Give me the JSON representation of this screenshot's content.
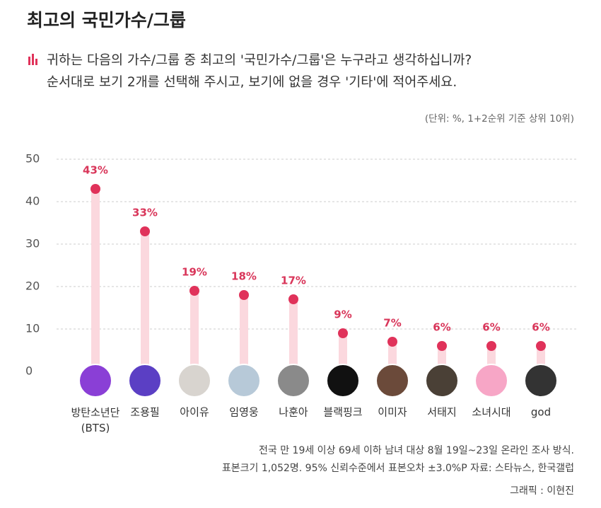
{
  "chart_data": {
    "type": "lollipop",
    "title": "최고의 국민가수/그룹",
    "subtitle": [
      "귀하는 다음의 가수/그룹 중 최고의 '국민가수/그룹'은 누구라고 생각하십니까?",
      "순서대로 보기 2개를 선택해 주시고, 보기에 없을 경우 '기타'에 적어주세요."
    ],
    "unit_note": "(단위: %, 1+2순위 기준 상위 10위)",
    "categories": [
      "방탄소년단 (BTS)",
      "조용필",
      "아이유",
      "임영웅",
      "나훈아",
      "블랙핑크",
      "이미자",
      "서태지",
      "소녀시대",
      "god"
    ],
    "values": [
      43,
      33,
      19,
      18,
      17,
      9,
      7,
      6,
      6,
      6
    ],
    "value_labels": [
      "43%",
      "33%",
      "19%",
      "18%",
      "17%",
      "9%",
      "7%",
      "6%",
      "6%",
      "6%"
    ],
    "color": "#e0325a",
    "stem_color": "#fbd8de",
    "ylim": [
      0,
      53
    ],
    "yticks": [
      0,
      10,
      20,
      30,
      40,
      50
    ],
    "grid": true,
    "footnotes": [
      "전국 만 19세 이상 69세 이하 남녀 대상 8월 19일~23일 온라인 조사 방식.",
      "표본크기 1,052명. 95% 신뢰수준에서 표본오차 ±3.0%P 자료: 스타뉴스, 한국갤럽"
    ],
    "credit": "그래픽 : 이현진"
  }
}
